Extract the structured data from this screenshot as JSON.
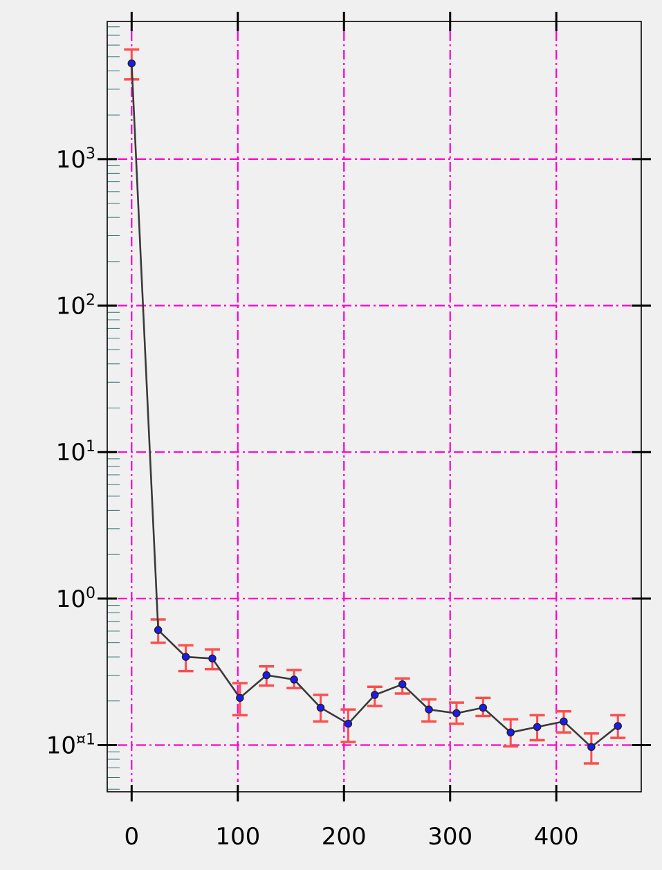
{
  "chart_data": {
    "type": "line",
    "title": "",
    "xlabel": "",
    "ylabel": "",
    "x_ticks": [
      0,
      100,
      200,
      300,
      400
    ],
    "y_ticks": [
      {
        "value": 0.1,
        "base": "10",
        "exp": "¤1"
      },
      {
        "value": 1,
        "base": "10",
        "exp": "0"
      },
      {
        "value": 10,
        "base": "10",
        "exp": "1"
      },
      {
        "value": 100,
        "base": "10",
        "exp": "2"
      },
      {
        "value": 1000,
        "base": "10",
        "exp": "3"
      }
    ],
    "xlim": [
      -23,
      480
    ],
    "ylim": [
      0.048,
      8700
    ],
    "yscale": "log",
    "grid": true,
    "colors": {
      "background": "#f0f0f0",
      "grid": "#ff00cc",
      "line": "#3a3a3a",
      "marker": "#1a1aff",
      "error": "#ff4d4d"
    },
    "series": [
      {
        "x": [
          0,
          25,
          51,
          76,
          102,
          127,
          153,
          178,
          204,
          229,
          255,
          280,
          306,
          331,
          357,
          382,
          407,
          433,
          458
        ],
        "y": [
          4500,
          0.61,
          0.4,
          0.39,
          0.21,
          0.3,
          0.28,
          0.18,
          0.14,
          0.22,
          0.26,
          0.175,
          0.165,
          0.18,
          0.122,
          0.133,
          0.145,
          0.097,
          0.135
        ],
        "err_low": [
          3500,
          0.5,
          0.32,
          0.33,
          0.16,
          0.255,
          0.245,
          0.145,
          0.105,
          0.185,
          0.225,
          0.145,
          0.14,
          0.158,
          0.098,
          0.108,
          0.122,
          0.075,
          0.112
        ],
        "err_high": [
          5600,
          0.72,
          0.48,
          0.45,
          0.265,
          0.345,
          0.325,
          0.22,
          0.175,
          0.25,
          0.285,
          0.205,
          0.195,
          0.21,
          0.15,
          0.16,
          0.17,
          0.12,
          0.16
        ]
      }
    ]
  }
}
